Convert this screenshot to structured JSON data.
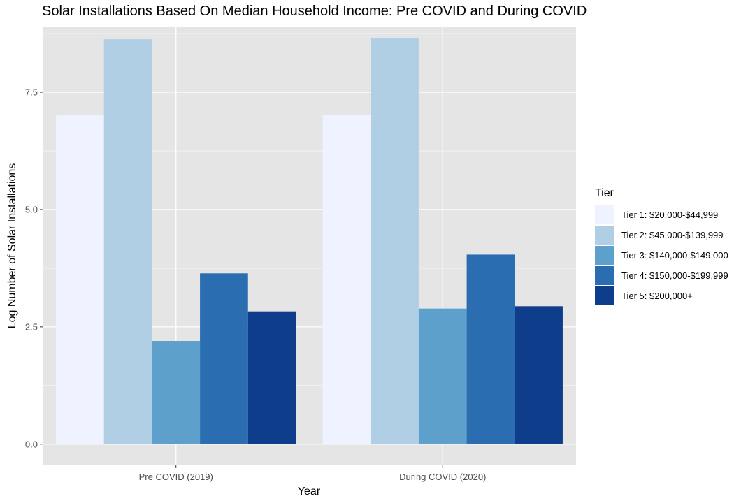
{
  "chart_data": {
    "type": "bar",
    "title": "Solar Installations Based On Median Household Income: Pre COVID and During COVID",
    "xlabel": "Year",
    "ylabel": "Log Number of Solar Installations",
    "categories": [
      "Pre COVID (2019)",
      "During COVID (2020)"
    ],
    "ylim": [
      -0.45,
      8.9
    ],
    "yticks": [
      0.0,
      2.5,
      5.0,
      7.5
    ],
    "ytick_labels": [
      "0.0",
      "2.5",
      "5.0",
      "7.5"
    ],
    "grid": true,
    "legend_position": "right",
    "legend_title": "Tier",
    "series": [
      {
        "name": "Tier 1: $20,000-$44,999",
        "color": "#eff3ff",
        "values": [
          7.01,
          7.01
        ]
      },
      {
        "name": "Tier 2: $45,000-$139,999",
        "color": "#b1cfe4",
        "values": [
          8.63,
          8.66
        ]
      },
      {
        "name": "Tier 3: $140,000-$149,000",
        "color": "#5ea0cc",
        "values": [
          2.2,
          2.89
        ]
      },
      {
        "name": "Tier 4: $150,000-$199,999",
        "color": "#2a6db0",
        "values": [
          3.64,
          4.04
        ]
      },
      {
        "name": "Tier 5: $200,000+",
        "color": "#0e3d8b",
        "values": [
          2.83,
          2.94
        ]
      }
    ],
    "colors": {
      "panel": "#e5e5e5",
      "grid_major": "#ffffff",
      "tick_text": "#4d4d4d"
    }
  }
}
